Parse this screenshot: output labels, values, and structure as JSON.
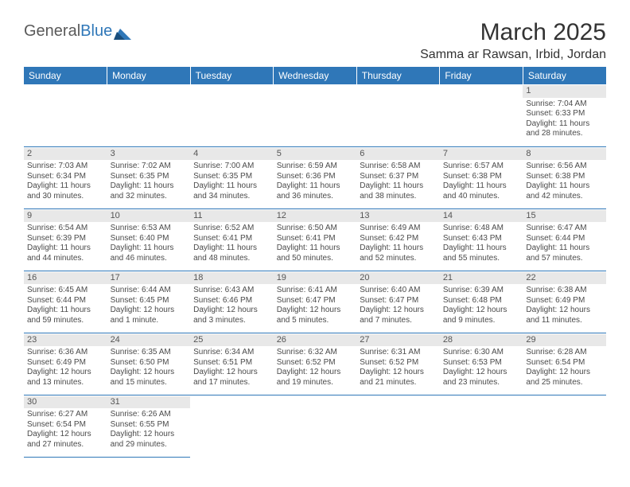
{
  "logo": {
    "text1": "General",
    "text2": "Blue"
  },
  "title": "March 2025",
  "location": "Samma ar Rawsan, Irbid, Jordan",
  "colors": {
    "header_bg": "#2f77b8",
    "header_text": "#ffffff",
    "border": "#2f77b8",
    "daynum_bg": "#e8e8e8",
    "body_text": "#4a4a4a",
    "title_text": "#333333",
    "logo_gray": "#5a5a5a",
    "logo_blue": "#2f77b8"
  },
  "weekdays": [
    "Sunday",
    "Monday",
    "Tuesday",
    "Wednesday",
    "Thursday",
    "Friday",
    "Saturday"
  ],
  "weeks": [
    [
      null,
      null,
      null,
      null,
      null,
      null,
      {
        "n": "1",
        "sr": "Sunrise: 7:04 AM",
        "ss": "Sunset: 6:33 PM",
        "dl": "Daylight: 11 hours and 28 minutes."
      }
    ],
    [
      {
        "n": "2",
        "sr": "Sunrise: 7:03 AM",
        "ss": "Sunset: 6:34 PM",
        "dl": "Daylight: 11 hours and 30 minutes."
      },
      {
        "n": "3",
        "sr": "Sunrise: 7:02 AM",
        "ss": "Sunset: 6:35 PM",
        "dl": "Daylight: 11 hours and 32 minutes."
      },
      {
        "n": "4",
        "sr": "Sunrise: 7:00 AM",
        "ss": "Sunset: 6:35 PM",
        "dl": "Daylight: 11 hours and 34 minutes."
      },
      {
        "n": "5",
        "sr": "Sunrise: 6:59 AM",
        "ss": "Sunset: 6:36 PM",
        "dl": "Daylight: 11 hours and 36 minutes."
      },
      {
        "n": "6",
        "sr": "Sunrise: 6:58 AM",
        "ss": "Sunset: 6:37 PM",
        "dl": "Daylight: 11 hours and 38 minutes."
      },
      {
        "n": "7",
        "sr": "Sunrise: 6:57 AM",
        "ss": "Sunset: 6:38 PM",
        "dl": "Daylight: 11 hours and 40 minutes."
      },
      {
        "n": "8",
        "sr": "Sunrise: 6:56 AM",
        "ss": "Sunset: 6:38 PM",
        "dl": "Daylight: 11 hours and 42 minutes."
      }
    ],
    [
      {
        "n": "9",
        "sr": "Sunrise: 6:54 AM",
        "ss": "Sunset: 6:39 PM",
        "dl": "Daylight: 11 hours and 44 minutes."
      },
      {
        "n": "10",
        "sr": "Sunrise: 6:53 AM",
        "ss": "Sunset: 6:40 PM",
        "dl": "Daylight: 11 hours and 46 minutes."
      },
      {
        "n": "11",
        "sr": "Sunrise: 6:52 AM",
        "ss": "Sunset: 6:41 PM",
        "dl": "Daylight: 11 hours and 48 minutes."
      },
      {
        "n": "12",
        "sr": "Sunrise: 6:50 AM",
        "ss": "Sunset: 6:41 PM",
        "dl": "Daylight: 11 hours and 50 minutes."
      },
      {
        "n": "13",
        "sr": "Sunrise: 6:49 AM",
        "ss": "Sunset: 6:42 PM",
        "dl": "Daylight: 11 hours and 52 minutes."
      },
      {
        "n": "14",
        "sr": "Sunrise: 6:48 AM",
        "ss": "Sunset: 6:43 PM",
        "dl": "Daylight: 11 hours and 55 minutes."
      },
      {
        "n": "15",
        "sr": "Sunrise: 6:47 AM",
        "ss": "Sunset: 6:44 PM",
        "dl": "Daylight: 11 hours and 57 minutes."
      }
    ],
    [
      {
        "n": "16",
        "sr": "Sunrise: 6:45 AM",
        "ss": "Sunset: 6:44 PM",
        "dl": "Daylight: 11 hours and 59 minutes."
      },
      {
        "n": "17",
        "sr": "Sunrise: 6:44 AM",
        "ss": "Sunset: 6:45 PM",
        "dl": "Daylight: 12 hours and 1 minute."
      },
      {
        "n": "18",
        "sr": "Sunrise: 6:43 AM",
        "ss": "Sunset: 6:46 PM",
        "dl": "Daylight: 12 hours and 3 minutes."
      },
      {
        "n": "19",
        "sr": "Sunrise: 6:41 AM",
        "ss": "Sunset: 6:47 PM",
        "dl": "Daylight: 12 hours and 5 minutes."
      },
      {
        "n": "20",
        "sr": "Sunrise: 6:40 AM",
        "ss": "Sunset: 6:47 PM",
        "dl": "Daylight: 12 hours and 7 minutes."
      },
      {
        "n": "21",
        "sr": "Sunrise: 6:39 AM",
        "ss": "Sunset: 6:48 PM",
        "dl": "Daylight: 12 hours and 9 minutes."
      },
      {
        "n": "22",
        "sr": "Sunrise: 6:38 AM",
        "ss": "Sunset: 6:49 PM",
        "dl": "Daylight: 12 hours and 11 minutes."
      }
    ],
    [
      {
        "n": "23",
        "sr": "Sunrise: 6:36 AM",
        "ss": "Sunset: 6:49 PM",
        "dl": "Daylight: 12 hours and 13 minutes."
      },
      {
        "n": "24",
        "sr": "Sunrise: 6:35 AM",
        "ss": "Sunset: 6:50 PM",
        "dl": "Daylight: 12 hours and 15 minutes."
      },
      {
        "n": "25",
        "sr": "Sunrise: 6:34 AM",
        "ss": "Sunset: 6:51 PM",
        "dl": "Daylight: 12 hours and 17 minutes."
      },
      {
        "n": "26",
        "sr": "Sunrise: 6:32 AM",
        "ss": "Sunset: 6:52 PM",
        "dl": "Daylight: 12 hours and 19 minutes."
      },
      {
        "n": "27",
        "sr": "Sunrise: 6:31 AM",
        "ss": "Sunset: 6:52 PM",
        "dl": "Daylight: 12 hours and 21 minutes."
      },
      {
        "n": "28",
        "sr": "Sunrise: 6:30 AM",
        "ss": "Sunset: 6:53 PM",
        "dl": "Daylight: 12 hours and 23 minutes."
      },
      {
        "n": "29",
        "sr": "Sunrise: 6:28 AM",
        "ss": "Sunset: 6:54 PM",
        "dl": "Daylight: 12 hours and 25 minutes."
      }
    ],
    [
      {
        "n": "30",
        "sr": "Sunrise: 6:27 AM",
        "ss": "Sunset: 6:54 PM",
        "dl": "Daylight: 12 hours and 27 minutes."
      },
      {
        "n": "31",
        "sr": "Sunrise: 6:26 AM",
        "ss": "Sunset: 6:55 PM",
        "dl": "Daylight: 12 hours and 29 minutes."
      },
      null,
      null,
      null,
      null,
      null
    ]
  ]
}
